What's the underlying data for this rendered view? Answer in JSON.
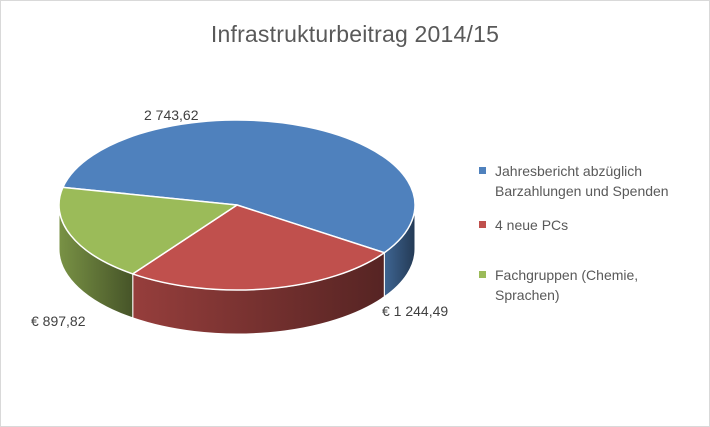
{
  "chart_data": {
    "type": "pie",
    "title": "Infrastrukturbeitrag 2014/15",
    "three_d": true,
    "legend_position": "right",
    "slices": [
      {
        "name": "Jahresbericht abzüglich Barzahlungen und Spenden",
        "value": 2743.62,
        "label": "2 743,62",
        "color": "#4f81bd"
      },
      {
        "name": "4 neue PCs",
        "value": 1244.49,
        "label": "€ 1 244,49",
        "color": "#c0504d"
      },
      {
        "name": "Fachgruppen (Chemie, Sprachen)",
        "value": 897.82,
        "label": "€  897,82",
        "color": "#9bbb59"
      }
    ]
  }
}
